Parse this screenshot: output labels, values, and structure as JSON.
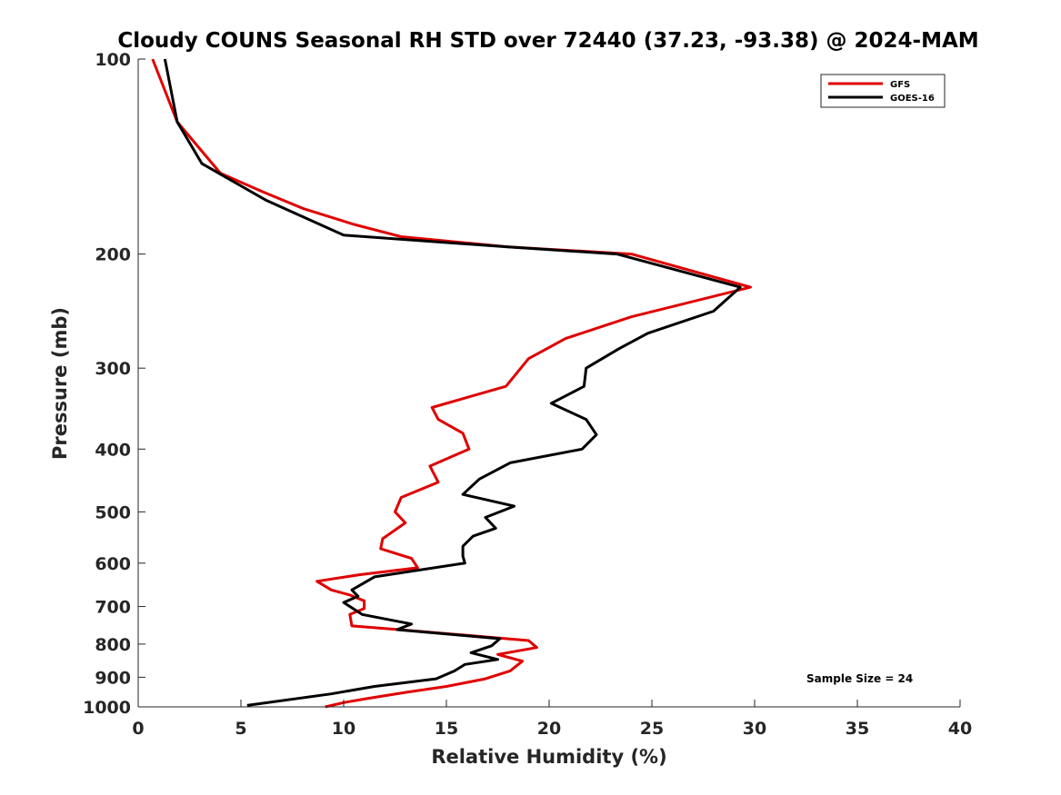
{
  "chart_data": {
    "type": "line",
    "title": "Cloudy COUNS Seasonal RH STD over 72440 (37.23, -93.38) @ 2024-MAM",
    "xlabel": "Relative Humidity (%)",
    "ylabel": "Pressure (mb)",
    "xlim": [
      0,
      40
    ],
    "ylim": [
      100,
      1000
    ],
    "yscale": "log",
    "y_reversed": true,
    "xticks": [
      0,
      5,
      10,
      15,
      20,
      25,
      30,
      35,
      40
    ],
    "yticks": [
      100,
      200,
      300,
      400,
      500,
      600,
      700,
      800,
      900,
      1000
    ],
    "legend_position": "top-right",
    "annotation": "Sample Size = 24",
    "series": [
      {
        "name": "GFS",
        "color": "#e00000",
        "points": [
          [
            0.7,
            100
          ],
          [
            1.9,
            125
          ],
          [
            4.0,
            150
          ],
          [
            6.0,
            160
          ],
          [
            8.0,
            170
          ],
          [
            10.5,
            180
          ],
          [
            12.8,
            188
          ],
          [
            18.0,
            195
          ],
          [
            24.0,
            200
          ],
          [
            29.8,
            225
          ],
          [
            24.0,
            250
          ],
          [
            20.8,
            270
          ],
          [
            19.0,
            290
          ],
          [
            17.9,
            320
          ],
          [
            14.3,
            345
          ],
          [
            14.6,
            360
          ],
          [
            15.8,
            378
          ],
          [
            16.1,
            400
          ],
          [
            14.2,
            425
          ],
          [
            14.6,
            450
          ],
          [
            12.8,
            475
          ],
          [
            12.5,
            500
          ],
          [
            13.0,
            520
          ],
          [
            11.9,
            550
          ],
          [
            11.8,
            570
          ],
          [
            13.3,
            590
          ],
          [
            13.6,
            610
          ],
          [
            10.8,
            625
          ],
          [
            8.7,
            640
          ],
          [
            9.4,
            660
          ],
          [
            10.3,
            672
          ],
          [
            11.0,
            686
          ],
          [
            11.0,
            705
          ],
          [
            10.3,
            720
          ],
          [
            10.4,
            750
          ],
          [
            12.7,
            760
          ],
          [
            19.0,
            790
          ],
          [
            19.4,
            810
          ],
          [
            17.5,
            830
          ],
          [
            18.7,
            850
          ],
          [
            18.1,
            880
          ],
          [
            16.9,
            905
          ],
          [
            15.0,
            930
          ],
          [
            13.0,
            950
          ],
          [
            11.2,
            970
          ],
          [
            10.0,
            985
          ],
          [
            9.1,
            1000
          ]
        ]
      },
      {
        "name": "GOES-16",
        "color": "#000000",
        "points": [
          [
            1.3,
            100
          ],
          [
            1.9,
            125
          ],
          [
            3.1,
            145
          ],
          [
            6.2,
            165
          ],
          [
            10.0,
            187
          ],
          [
            18.0,
            195
          ],
          [
            23.3,
            200
          ],
          [
            29.3,
            225
          ],
          [
            28.0,
            245
          ],
          [
            24.8,
            265
          ],
          [
            23.4,
            280
          ],
          [
            21.8,
            300
          ],
          [
            21.7,
            320
          ],
          [
            20.1,
            340
          ],
          [
            21.8,
            360
          ],
          [
            22.3,
            380
          ],
          [
            21.6,
            400
          ],
          [
            18.1,
            420
          ],
          [
            16.6,
            445
          ],
          [
            15.8,
            470
          ],
          [
            18.3,
            490
          ],
          [
            16.9,
            510
          ],
          [
            17.4,
            530
          ],
          [
            16.3,
            545
          ],
          [
            15.8,
            565
          ],
          [
            15.8,
            585
          ],
          [
            15.9,
            600
          ],
          [
            11.5,
            630
          ],
          [
            10.4,
            660
          ],
          [
            10.7,
            675
          ],
          [
            10.0,
            690
          ],
          [
            10.9,
            720
          ],
          [
            13.3,
            745
          ],
          [
            12.6,
            760
          ],
          [
            17.6,
            785
          ],
          [
            17.2,
            805
          ],
          [
            16.2,
            825
          ],
          [
            17.5,
            845
          ],
          [
            15.9,
            860
          ],
          [
            15.4,
            880
          ],
          [
            14.5,
            905
          ],
          [
            11.5,
            930
          ],
          [
            9.4,
            955
          ],
          [
            5.3,
            995
          ]
        ]
      }
    ]
  }
}
